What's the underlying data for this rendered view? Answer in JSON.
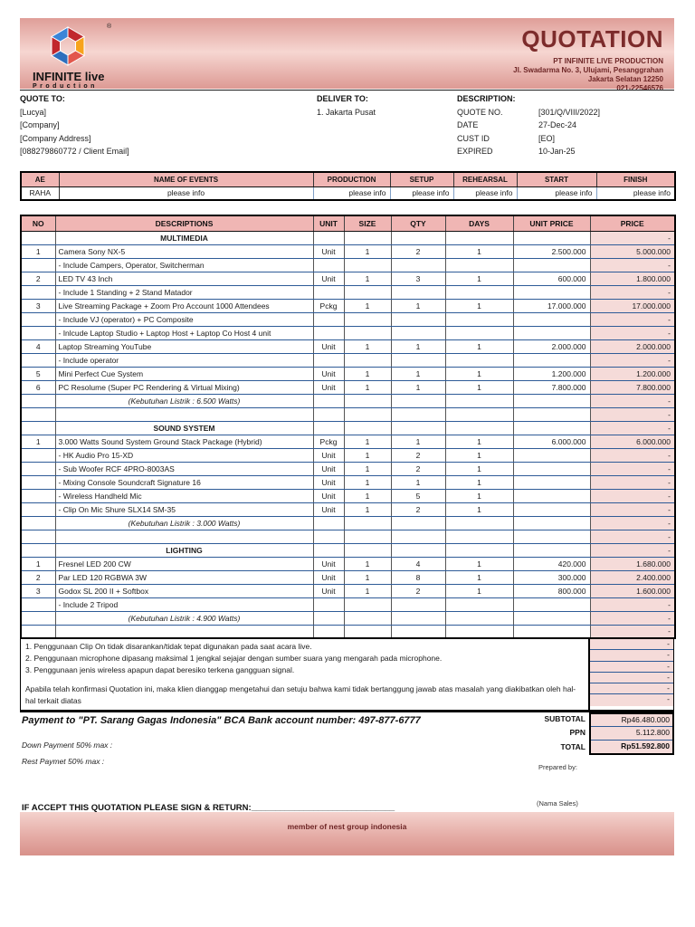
{
  "header": {
    "title": "QUOTATION",
    "company_name": "PT INFINITE LIVE PRODUCTION",
    "address_line1": "Jl. Swadarma No. 3, Ulujami, Pesanggrahan",
    "address_line2": "Jakarta Selatan 12250",
    "phone": "021-22546576",
    "logo_name": "INFINITE live",
    "logo_subtitle": "Production",
    "registered_mark": "®"
  },
  "quote_to": {
    "label": "QUOTE TO:",
    "lines": [
      "[Lucya]",
      "[Company]",
      "[Company Address]",
      "[088279860772 / Client Email]"
    ]
  },
  "deliver_to": {
    "label": "DELIVER TO:",
    "lines": [
      "1. Jakarta Pusat"
    ]
  },
  "description": {
    "label": "DESCRIPTION:",
    "fields": [
      {
        "label": "QUOTE NO.",
        "value": "[301/Q/VIII/2022]"
      },
      {
        "label": "DATE",
        "value": "27-Dec-24"
      },
      {
        "label": "CUST ID",
        "value": "[EO]"
      },
      {
        "label": "EXPIRED",
        "value": "10-Jan-25"
      }
    ]
  },
  "events_table": {
    "headers": [
      "AE",
      "NAME OF EVENTS",
      "PRODUCTION",
      "SETUP",
      "REHEARSAL",
      "START",
      "FINISH"
    ],
    "row": [
      "RAHA",
      "please info",
      "please info",
      "please info",
      "please info",
      "please info",
      "please info"
    ]
  },
  "items_table": {
    "headers": [
      "NO",
      "DESCRIPTIONS",
      "UNIT",
      "SIZE",
      "QTY",
      "DAYS",
      "UNIT PRICE",
      "PRICE"
    ],
    "rows": [
      {
        "style": "section",
        "desc": "MULTIMEDIA",
        "price": "-"
      },
      {
        "style": "item",
        "no": "1",
        "desc": "Camera Sony NX-5",
        "unit": "Unit",
        "size": "1",
        "qty": "2",
        "days": "1",
        "unit_price": "2.500.000",
        "price": "5.000.000"
      },
      {
        "style": "sub",
        "desc": "- Include Campers, Operator, Switcherman",
        "price": "-"
      },
      {
        "style": "item",
        "no": "2",
        "desc": "LED TV 43 Inch",
        "unit": "Unit",
        "size": "1",
        "qty": "3",
        "days": "1",
        "unit_price": "600.000",
        "price": "1.800.000"
      },
      {
        "style": "sub",
        "desc": "- Include 1 Standing + 2 Stand Matador",
        "price": "-"
      },
      {
        "style": "item",
        "no": "3",
        "desc": "Live Streaming Package + Zoom Pro Account 1000 Attendees",
        "unit": "Pckg",
        "size": "1",
        "qty": "1",
        "days": "1",
        "unit_price": "17.000.000",
        "price": "17.000.000"
      },
      {
        "style": "sub",
        "desc": "- Include VJ (operator) + PC Composite",
        "price": "-"
      },
      {
        "style": "sub",
        "desc": "- Inlcude Laptop Studio + Laptop Host + Laptop Co Host 4 unit",
        "price": "-"
      },
      {
        "style": "item",
        "no": "4",
        "desc": "Laptop Streaming YouTube",
        "unit": "Unit",
        "size": "1",
        "qty": "1",
        "days": "1",
        "unit_price": "2.000.000",
        "price": "2.000.000"
      },
      {
        "style": "sub",
        "desc": "- Include operator",
        "price": "-"
      },
      {
        "style": "item",
        "no": "5",
        "desc": "Mini Perfect Cue System",
        "unit": "Unit",
        "size": "1",
        "qty": "1",
        "days": "1",
        "unit_price": "1.200.000",
        "price": "1.200.000"
      },
      {
        "style": "item",
        "no": "6",
        "desc": "PC Resolume (Super PC Rendering & Virtual Mixing)",
        "unit": "Unit",
        "size": "1",
        "qty": "1",
        "days": "1",
        "unit_price": "7.800.000",
        "price": "7.800.000"
      },
      {
        "style": "watts",
        "desc": "(Kebutuhan Listrik : 6.500 Watts)",
        "price": "-"
      },
      {
        "style": "empty",
        "desc": "",
        "price": "-"
      },
      {
        "style": "section",
        "desc": "SOUND SYSTEM",
        "price": "-"
      },
      {
        "style": "item",
        "no": "1",
        "desc": "3.000 Watts Sound System Ground Stack Package (Hybrid)",
        "unit": "Pckg",
        "size": "1",
        "qty": "1",
        "days": "1",
        "unit_price": "6.000.000",
        "price": "6.000.000"
      },
      {
        "style": "sub",
        "desc": "- HK Audio Pro 15-XD",
        "unit": "Unit",
        "size": "1",
        "qty": "2",
        "days": "1",
        "price": "-"
      },
      {
        "style": "sub",
        "desc": "- Sub Woofer RCF 4PRO-8003AS",
        "unit": "Unit",
        "size": "1",
        "qty": "2",
        "days": "1",
        "price": "-"
      },
      {
        "style": "sub",
        "desc": "- Mixing Console Soundcraft Signature 16",
        "unit": "Unit",
        "size": "1",
        "qty": "1",
        "days": "1",
        "price": "-"
      },
      {
        "style": "sub",
        "desc": "- Wireless Handheld Mic",
        "unit": "Unit",
        "size": "1",
        "qty": "5",
        "days": "1",
        "price": "-"
      },
      {
        "style": "sub",
        "desc": "- Clip On Mic Shure SLX14 SM-35",
        "unit": "Unit",
        "size": "1",
        "qty": "2",
        "days": "1",
        "price": "-"
      },
      {
        "style": "watts",
        "desc": "(Kebutuhan Listrik : 3.000 Watts)",
        "price": "-"
      },
      {
        "style": "empty",
        "desc": "",
        "price": "-"
      },
      {
        "style": "section",
        "desc": "LIGHTING",
        "price": "-"
      },
      {
        "style": "item",
        "no": "1",
        "desc": "Fresnel LED 200 CW",
        "unit": "Unit",
        "size": "1",
        "qty": "4",
        "days": "1",
        "unit_price": "420.000",
        "price": "1.680.000"
      },
      {
        "style": "item",
        "no": "2",
        "desc": "Par LED 120 RGBWA 3W",
        "unit": "Unit",
        "size": "1",
        "qty": "8",
        "days": "1",
        "unit_price": "300.000",
        "price": "2.400.000"
      },
      {
        "style": "item",
        "no": "3",
        "desc": "Godox SL 200 II + Softbox",
        "unit": "Unit",
        "size": "1",
        "qty": "2",
        "days": "1",
        "unit_price": "800.000",
        "price": "1.600.000"
      },
      {
        "style": "sub",
        "desc": "- Include 2 Tripod",
        "price": "-"
      },
      {
        "style": "watts",
        "desc": "(Kebutuhan Listrik : 4.900 Watts)",
        "price": "-"
      },
      {
        "style": "empty",
        "desc": "",
        "price": "-"
      }
    ]
  },
  "notes": {
    "lines": [
      "1. Penggunaan Clip On tidak disarankan/tidak tepat digunakan pada saat acara live.",
      "2. Penggunaan microphone dipasang maksimal 1 jengkal sejajar dengan sumber suara yang mengarah pada microphone.",
      "3. Penggunaan jenis wireless apapun dapat beresiko terkena gangguan signal.",
      "",
      "Apabila telah konfirmasi Quotation ini, maka klien dianggap mengetahui dan setuju bahwa kami tidak bertanggung jawab atas masalah yang diakibatkan oleh hal-hal terkait diatas"
    ],
    "price_dashes": [
      "-",
      "-",
      "-",
      "-",
      "-",
      "-"
    ]
  },
  "totals": {
    "subtotal_label": "SUBTOTAL",
    "subtotal": "Rp46.480.000",
    "ppn_label": "PPN",
    "ppn": "5.112.800",
    "total_label": "TOTAL",
    "total": "Rp51.592.800"
  },
  "footer": {
    "payment_line": "Payment to \"PT. Sarang Gagas Indonesia\" BCA Bank account number: 497-877-6777",
    "down_payment": "Down Payment 50% max :",
    "rest_payment": "Rest Paymet 50% max :",
    "prepared_by": "Prepared by:",
    "nama_sales": "(Nama Sales)",
    "sign_return": "IF ACCEPT THIS QUOTATION PLEASE SIGN & RETURN:______________________________",
    "member_text": "member of nest group indonesia"
  },
  "colors": {
    "header_pink_dark": "#dd9a94",
    "header_pink_light": "#f6d6d1",
    "table_header_pink": "#f0b6b4",
    "price_cell_pink": "#f5dbd9",
    "maroon_text": "#6e2626",
    "navy_grid": "#2e5b97",
    "logo_red": "#c1272d",
    "logo_blue": "#2e6fbd",
    "logo_yellow": "#f7a31c"
  }
}
